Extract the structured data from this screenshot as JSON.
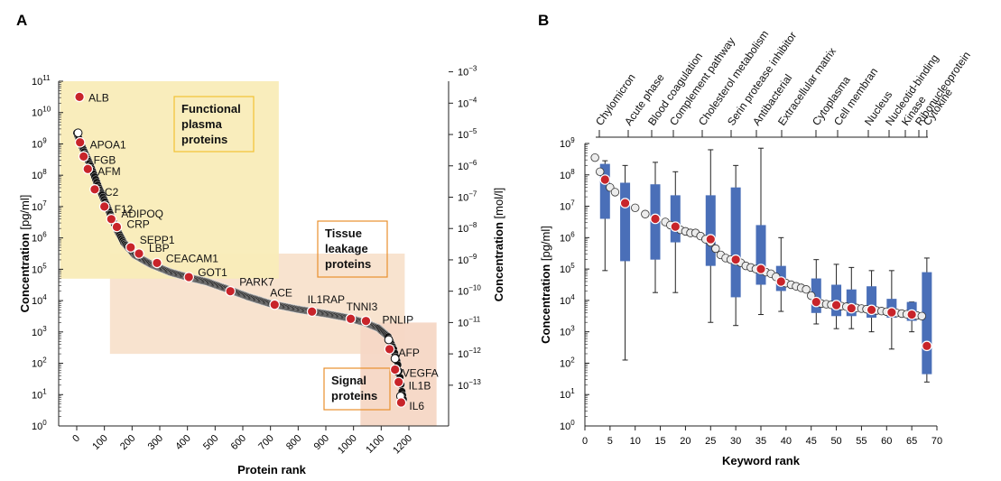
{
  "panels": {
    "a": "A",
    "b": "B"
  },
  "chart_data": [
    {
      "type": "scatter",
      "panel": "A",
      "xlabel": "Protein rank",
      "ylabel": "Concentration",
      "ylabel_unit": "[pg/ml]",
      "y2label": "Concentration",
      "y2label_unit": "[mol/l]",
      "xlim": [
        0,
        1300
      ],
      "ylim_log10": [
        0,
        11
      ],
      "xticks": [
        "0",
        "100",
        "200",
        "300",
        "400",
        "500",
        "600",
        "700",
        "800",
        "900",
        "1000",
        "1100",
        "1200"
      ],
      "yticks": [
        {
          "base": "10",
          "exp": "0"
        },
        {
          "base": "10",
          "exp": "1"
        },
        {
          "base": "10",
          "exp": "2"
        },
        {
          "base": "10",
          "exp": "3"
        },
        {
          "base": "10",
          "exp": "4"
        },
        {
          "base": "10",
          "exp": "5"
        },
        {
          "base": "10",
          "exp": "6"
        },
        {
          "base": "10",
          "exp": "7"
        },
        {
          "base": "10",
          "exp": "8"
        },
        {
          "base": "10",
          "exp": "9"
        },
        {
          "base": "10",
          "exp": "10"
        },
        {
          "base": "10",
          "exp": "11"
        }
      ],
      "y2ticks": [
        {
          "base": "10",
          "exp": "−13",
          "pg_log10": 1.3
        },
        {
          "base": "10",
          "exp": "−12",
          "pg_log10": 2.3
        },
        {
          "base": "10",
          "exp": "−11",
          "pg_log10": 3.3
        },
        {
          "base": "10",
          "exp": "−10",
          "pg_log10": 4.3
        },
        {
          "base": "10",
          "exp": "−9",
          "pg_log10": 5.3
        },
        {
          "base": "10",
          "exp": "−8",
          "pg_log10": 6.3
        },
        {
          "base": "10",
          "exp": "−7",
          "pg_log10": 7.3
        },
        {
          "base": "10",
          "exp": "−6",
          "pg_log10": 8.3
        },
        {
          "base": "10",
          "exp": "−5",
          "pg_log10": 9.3
        },
        {
          "base": "10",
          "exp": "−4",
          "pg_log10": 10.3
        },
        {
          "base": "10",
          "exp": "−3",
          "pg_log10": 11.3
        }
      ],
      "regions": [
        {
          "name": "functional",
          "label_lines": [
            "Functional",
            "plasma",
            "proteins"
          ],
          "x_range": [
            -60,
            730
          ],
          "log10_range": [
            4.7,
            11
          ],
          "color": "#f9ecb8"
        },
        {
          "name": "tissue",
          "label_lines": [
            "Tissue",
            "leakage",
            "proteins"
          ],
          "x_range": [
            120,
            1185
          ],
          "log10_range": [
            2.3,
            5.5
          ],
          "color": "#f8e2cc"
        },
        {
          "name": "signal",
          "label_lines": [
            "Signal",
            "proteins"
          ],
          "x_range": [
            1025,
            1300
          ],
          "log10_range": [
            0,
            3.3
          ],
          "color": "#f5d7c5"
        }
      ],
      "curve_log10": [
        [
          0,
          9.35
        ],
        [
          20,
          8.9
        ],
        [
          50,
          8.3
        ],
        [
          80,
          7.6
        ],
        [
          110,
          7.0
        ],
        [
          140,
          6.35
        ],
        [
          170,
          5.85
        ],
        [
          210,
          5.45
        ],
        [
          270,
          5.15
        ],
        [
          340,
          4.9
        ],
        [
          400,
          4.75
        ],
        [
          470,
          4.6
        ],
        [
          550,
          4.35
        ],
        [
          620,
          4.12
        ],
        [
          700,
          3.9
        ],
        [
          800,
          3.72
        ],
        [
          900,
          3.58
        ],
        [
          980,
          3.45
        ],
        [
          1040,
          3.3
        ],
        [
          1090,
          3.12
        ],
        [
          1125,
          2.85
        ],
        [
          1145,
          2.45
        ],
        [
          1160,
          1.95
        ],
        [
          1168,
          1.55
        ],
        [
          1175,
          1.1
        ],
        [
          1180,
          0.85
        ]
      ],
      "open_points": [
        [
          5,
          9.35
        ],
        [
          10,
          9.05
        ],
        [
          1127,
          2.75
        ],
        [
          1150,
          2.15
        ],
        [
          1158,
          1.75
        ],
        [
          1170,
          0.95
        ]
      ],
      "highlighted": [
        {
          "label": "ALB",
          "rank": 10,
          "log10": 10.5
        },
        {
          "label": "APOA1",
          "rank": 12,
          "log10": 9.05
        },
        {
          "label": "FGB",
          "rank": 25,
          "log10": 8.6
        },
        {
          "label": "AFM",
          "rank": 40,
          "log10": 8.2
        },
        {
          "label": "C2",
          "rank": 65,
          "log10": 7.55
        },
        {
          "label": "F12",
          "rank": 100,
          "log10": 7.0
        },
        {
          "label": "ADIPOQ",
          "rank": 125,
          "log10": 6.6
        },
        {
          "label": "CRP",
          "rank": 145,
          "log10": 6.35
        },
        {
          "label": "SEPP1",
          "rank": 195,
          "log10": 5.7
        },
        {
          "label": "LBP",
          "rank": 225,
          "log10": 5.5
        },
        {
          "label": "CEACAM1",
          "rank": 290,
          "log10": 5.2
        },
        {
          "label": "GOT1",
          "rank": 405,
          "log10": 4.75
        },
        {
          "label": "PARK7",
          "rank": 555,
          "log10": 4.3
        },
        {
          "label": "ACE",
          "rank": 715,
          "log10": 3.87
        },
        {
          "label": "IL1RAP",
          "rank": 850,
          "log10": 3.65
        },
        {
          "label": "TNNI3",
          "rank": 990,
          "log10": 3.42
        },
        {
          "label": "PNLIP",
          "rank": 1045,
          "log10": 3.35
        },
        {
          "label": "AFP",
          "rank": 1130,
          "log10": 2.45
        },
        {
          "label": "VEGFA",
          "rank": 1150,
          "log10": 1.8
        },
        {
          "label": "IL1B",
          "rank": 1163,
          "log10": 1.4
        },
        {
          "label": "IL6",
          "rank": 1172,
          "log10": 0.75
        }
      ]
    },
    {
      "type": "box",
      "panel": "B",
      "xlabel": "Keyword rank",
      "ylabel": "Concentration",
      "ylabel_unit": "[pg/ml]",
      "xlim": [
        0,
        70
      ],
      "ylim_log10": [
        0,
        9
      ],
      "xticks": [
        "0",
        "5",
        "10",
        "15",
        "20",
        "25",
        "30",
        "35",
        "40",
        "45",
        "50",
        "55",
        "60",
        "65",
        "70"
      ],
      "yticks": [
        {
          "base": "10",
          "exp": "0"
        },
        {
          "base": "10",
          "exp": "1"
        },
        {
          "base": "10",
          "exp": "2"
        },
        {
          "base": "10",
          "exp": "3"
        },
        {
          "base": "10",
          "exp": "4"
        },
        {
          "base": "10",
          "exp": "5"
        },
        {
          "base": "10",
          "exp": "6"
        },
        {
          "base": "10",
          "exp": "7"
        },
        {
          "base": "10",
          "exp": "8"
        },
        {
          "base": "10",
          "exp": "9"
        }
      ],
      "trend_log10": [
        [
          2,
          8.55
        ],
        [
          3,
          8.1
        ],
        [
          4,
          7.85
        ],
        [
          5,
          7.6
        ],
        [
          6,
          7.45
        ],
        [
          8,
          7.1
        ],
        [
          10,
          6.95
        ],
        [
          12,
          6.75
        ],
        [
          14,
          6.6
        ],
        [
          16,
          6.5
        ],
        [
          17,
          6.4
        ],
        [
          18,
          6.35
        ],
        [
          19,
          6.25
        ],
        [
          20,
          6.2
        ],
        [
          21,
          6.15
        ],
        [
          22,
          6.15
        ],
        [
          23,
          6.05
        ],
        [
          24,
          5.95
        ],
        [
          25,
          5.85
        ],
        [
          26,
          5.65
        ],
        [
          27,
          5.45
        ],
        [
          28,
          5.35
        ],
        [
          29,
          5.3
        ],
        [
          30,
          5.25
        ],
        [
          31,
          5.2
        ],
        [
          32,
          5.1
        ],
        [
          33,
          5.05
        ],
        [
          34,
          5.0
        ],
        [
          35,
          4.95
        ],
        [
          36,
          4.9
        ],
        [
          37,
          4.85
        ],
        [
          38,
          4.75
        ],
        [
          39,
          4.6
        ],
        [
          40,
          4.55
        ],
        [
          41,
          4.5
        ],
        [
          42,
          4.45
        ],
        [
          43,
          4.4
        ],
        [
          44,
          4.35
        ],
        [
          45,
          4.15
        ],
        [
          46,
          3.95
        ],
        [
          47,
          3.9
        ],
        [
          48,
          3.88
        ],
        [
          49,
          3.86
        ],
        [
          50,
          3.84
        ],
        [
          51,
          3.82
        ],
        [
          52,
          3.8
        ],
        [
          53,
          3.78
        ],
        [
          54,
          3.76
        ],
        [
          55,
          3.74
        ],
        [
          56,
          3.72
        ],
        [
          57,
          3.7
        ],
        [
          58,
          3.68
        ],
        [
          59,
          3.66
        ],
        [
          60,
          3.64
        ],
        [
          61,
          3.62
        ],
        [
          62,
          3.6
        ],
        [
          63,
          3.58
        ],
        [
          64,
          3.56
        ],
        [
          65,
          3.54
        ],
        [
          66,
          3.52
        ],
        [
          67,
          3.5
        ]
      ],
      "boxes": [
        {
          "keyword": "Chylomicron",
          "rank": 4,
          "q1": 6.6,
          "median": 7.85,
          "q3": 8.35,
          "whisker_low": 4.95,
          "whisker_high": 8.45
        },
        {
          "keyword": "Acute phase",
          "rank": 8,
          "q1": 5.25,
          "median": 7.1,
          "q3": 7.75,
          "whisker_low": 2.1,
          "whisker_high": 8.3
        },
        {
          "keyword": "Blood coagulation",
          "rank": 14,
          "q1": 5.3,
          "median": 6.6,
          "q3": 7.7,
          "whisker_low": 4.25,
          "whisker_high": 8.4
        },
        {
          "keyword": "Complement pathway",
          "rank": 18,
          "q1": 5.85,
          "median": 6.35,
          "q3": 7.35,
          "whisker_low": 4.25,
          "whisker_high": 8.1
        },
        {
          "keyword": "Cholesterol metabolism",
          "rank": 25,
          "q1": 5.1,
          "median": 5.95,
          "q3": 7.35,
          "whisker_low": 3.3,
          "whisker_high": 8.8
        },
        {
          "keyword": "Serin protease inhibitor",
          "rank": 30,
          "q1": 4.1,
          "median": 5.3,
          "q3": 7.6,
          "whisker_low": 3.2,
          "whisker_high": 8.3
        },
        {
          "keyword": "Antibacterial",
          "rank": 35,
          "q1": 4.5,
          "median": 5.0,
          "q3": 6.4,
          "whisker_low": 3.55,
          "whisker_high": 8.85
        },
        {
          "keyword": "Extracellular matrix",
          "rank": 39,
          "q1": 4.3,
          "median": 4.6,
          "q3": 5.1,
          "whisker_low": 3.65,
          "whisker_high": 6.0
        },
        {
          "keyword": "Cytoplasma",
          "rank": 46,
          "q1": 3.6,
          "median": 3.95,
          "q3": 4.7,
          "whisker_low": 3.25,
          "whisker_high": 5.3
        },
        {
          "keyword": "Cell membran",
          "rank": 50,
          "q1": 3.5,
          "median": 3.85,
          "q3": 4.5,
          "whisker_low": 3.1,
          "whisker_high": 5.15
        },
        {
          "keyword": "Nucleus",
          "rank": 53,
          "q1": 3.5,
          "median": 3.75,
          "q3": 4.35,
          "whisker_low": 3.1,
          "whisker_high": 5.05
        },
        {
          "keyword": "Nucleotid-binding",
          "rank": 57,
          "q1": 3.45,
          "median": 3.7,
          "q3": 4.45,
          "whisker_low": 3.0,
          "whisker_high": 4.95
        },
        {
          "keyword": "Kinase",
          "rank": 61,
          "q1": 3.45,
          "median": 3.62,
          "q3": 4.05,
          "whisker_low": 2.45,
          "whisker_high": 4.95
        },
        {
          "keyword": "Ribonucleoprotein",
          "rank": 65,
          "q1": 3.35,
          "median": 3.55,
          "q3": 3.95,
          "whisker_low": 3.0,
          "whisker_high": 3.95
        },
        {
          "keyword": "Cytokine",
          "rank": 68,
          "q1": 1.65,
          "median": 2.55,
          "q3": 4.9,
          "whisker_low": 1.4,
          "whisker_high": 5.35
        }
      ]
    }
  ],
  "colors": {
    "marker_red": "#c8242a",
    "marker_edge": "#ffffff",
    "open_fill": "#ffffff",
    "box_blue": "#4a6fb8",
    "label_orange": "#e9902d",
    "label_yellow": "#f2c234",
    "axis": "#222222",
    "text": "#111111"
  }
}
